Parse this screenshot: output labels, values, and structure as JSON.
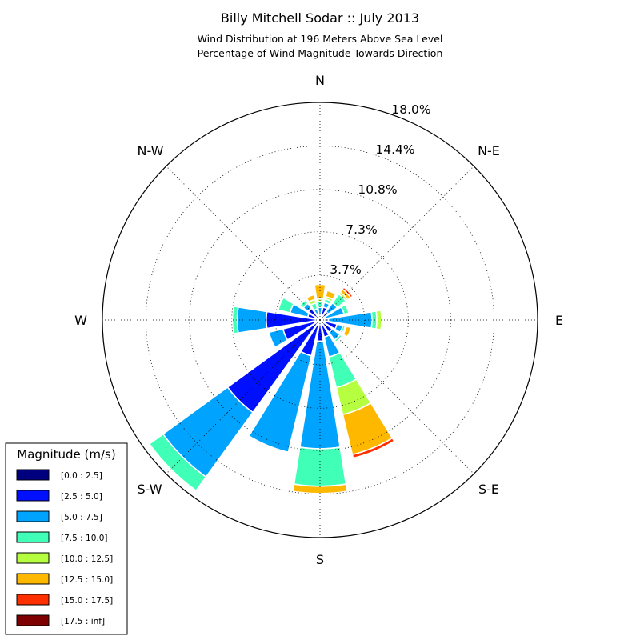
{
  "chart_data": {
    "type": "windrose",
    "title": "Billy Mitchell Sodar :: July 2013",
    "subtitle_lines": [
      "Wind Distribution at 196 Meters Above Sea Level",
      "Percentage of Wind Magnitude Towards Direction"
    ],
    "direction_labels": [
      "N",
      "N-E",
      "E",
      "S-E",
      "S",
      "S-W",
      "W",
      "N-W"
    ],
    "radial_ticks": [
      "3.7%",
      "7.3%",
      "10.8%",
      "14.4%",
      "18.0%"
    ],
    "radial_tick_values": [
      3.7,
      7.3,
      10.8,
      14.4,
      18.0
    ],
    "rmax": 18.0,
    "grid": true,
    "legend": {
      "title": "Magnitude (m/s)",
      "placement": "lower-left",
      "bins": [
        {
          "label": "[0.0 : 2.5]",
          "color": "#00007f"
        },
        {
          "label": "[2.5 : 5.0]",
          "color": "#0010ff"
        },
        {
          "label": "[5.0 : 7.5]",
          "color": "#00a4ff"
        },
        {
          "label": "[7.5 : 10.0]",
          "color": "#40ffb6"
        },
        {
          "label": "[10.0 : 12.5]",
          "color": "#b6ff40"
        },
        {
          "label": "[12.5 : 15.0]",
          "color": "#ffb800"
        },
        {
          "label": "[15.0 : 17.5]",
          "color": "#ff3000"
        },
        {
          "label": "[17.5 : inf]",
          "color": "#7f0000"
        }
      ]
    },
    "direction_bin_width_deg": 22.5,
    "directions_deg": [
      0,
      22.5,
      45,
      67.5,
      90,
      112.5,
      135,
      157.5,
      180,
      202.5,
      225,
      247.5,
      270,
      292.5,
      315,
      337.5
    ],
    "series": [
      {
        "name": "[0.0 : 2.5]",
        "values": [
          0.25,
          0.3,
          0.25,
          0.25,
          0.3,
          0.25,
          0.25,
          0.25,
          0.25,
          0.25,
          0.25,
          0.25,
          0.25,
          0.25,
          0.3,
          0.25
        ]
      },
      {
        "name": "[2.5 : 5.0]",
        "values": [
          0.1,
          0.8,
          0.6,
          0.1,
          0.4,
          1.2,
          1.0,
          1.2,
          1.5,
          2.8,
          9.2,
          2.9,
          4.2,
          0.8,
          0.9,
          0.3
        ]
      },
      {
        "name": "[5.0 : 7.5]",
        "values": [
          0.7,
          0.4,
          0.9,
          1.7,
          3.6,
          0.5,
          0.8,
          1.7,
          8.9,
          8.2,
          6.6,
          1.2,
          2.4,
          1.5,
          0.5,
          0.4
        ]
      },
      {
        "name": "[7.5 : 10.0]",
        "values": [
          0.5,
          0.3,
          0.9,
          0.4,
          0.4,
          0.2,
          0.2,
          2.6,
          3.1,
          0.0,
          1.4,
          0.1,
          0.4,
          1.0,
          0.35,
          0.5
        ]
      },
      {
        "name": "[10.0 : 12.5]",
        "values": [
          0.2,
          0.2,
          0.2,
          0.0,
          0.4,
          0.1,
          0.0,
          2.3,
          0.0,
          0.0,
          0.1,
          0.0,
          0.0,
          0.0,
          0.0,
          0.3
        ]
      },
      {
        "name": "[12.5 : 15.0]",
        "values": [
          1.2,
          0.5,
          0.3,
          0.0,
          0.0,
          0.4,
          0.0,
          3.4,
          0.6,
          0.0,
          0.0,
          0.0,
          0.0,
          0.0,
          0.0,
          0.4
        ]
      },
      {
        "name": "[15.0 : 17.5]",
        "values": [
          0.0,
          0.0,
          0.2,
          0.0,
          0.0,
          0.0,
          0.0,
          0.3,
          0.0,
          0.0,
          0.0,
          0.0,
          0.0,
          0.0,
          0.0,
          0.0
        ]
      },
      {
        "name": "[17.5 : inf]",
        "values": [
          0.0,
          0.0,
          0.0,
          0.0,
          0.0,
          0.0,
          0.0,
          0.0,
          0.0,
          0.0,
          0.0,
          0.0,
          0.0,
          0.0,
          0.0,
          0.0
        ]
      }
    ]
  }
}
